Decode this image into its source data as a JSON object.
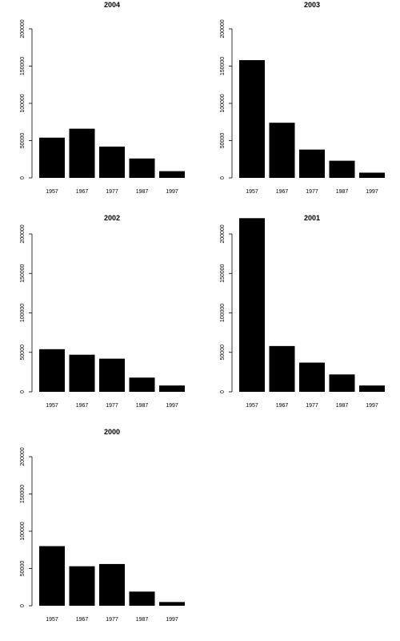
{
  "chart_data": [
    {
      "type": "bar",
      "title": "2004",
      "categories": [
        "1957",
        "1967",
        "1977",
        "1987",
        "1997"
      ],
      "values": [
        54000,
        66000,
        42000,
        26000,
        9000
      ],
      "ylim": [
        0,
        200000
      ],
      "yticks": [
        "0",
        "50000",
        "100000",
        "150000",
        "200000"
      ],
      "bar_color": "#000000"
    },
    {
      "type": "bar",
      "title": "2003",
      "categories": [
        "1957",
        "1967",
        "1977",
        "1987",
        "1997"
      ],
      "values": [
        158000,
        74000,
        38000,
        23000,
        7000
      ],
      "ylim": [
        0,
        200000
      ],
      "yticks": [
        "0",
        "50000",
        "100000",
        "150000",
        "200000"
      ],
      "bar_color": "#000000"
    },
    {
      "type": "bar",
      "title": "2002",
      "categories": [
        "1957",
        "1967",
        "1977",
        "1987",
        "1997"
      ],
      "values": [
        54000,
        47000,
        42000,
        18000,
        8000
      ],
      "ylim": [
        0,
        200000
      ],
      "yticks": [
        "0",
        "50000",
        "100000",
        "150000",
        "200000"
      ],
      "bar_color": "#000000"
    },
    {
      "type": "bar",
      "title": "2001",
      "categories": [
        "1957",
        "1967",
        "1977",
        "1987",
        "1997"
      ],
      "values": [
        222000,
        58000,
        37000,
        22000,
        8000
      ],
      "ylim": [
        0,
        200000
      ],
      "yticks": [
        "0",
        "50000",
        "100000",
        "150000",
        "200000"
      ],
      "bar_color": "#000000"
    },
    {
      "type": "bar",
      "title": "2000",
      "categories": [
        "1957",
        "1967",
        "1977",
        "1987",
        "1997"
      ],
      "values": [
        80000,
        53000,
        56000,
        19000,
        5000
      ],
      "ylim": [
        0,
        200000
      ],
      "yticks": [
        "0",
        "50000",
        "100000",
        "150000",
        "200000"
      ],
      "bar_color": "#000000"
    }
  ]
}
